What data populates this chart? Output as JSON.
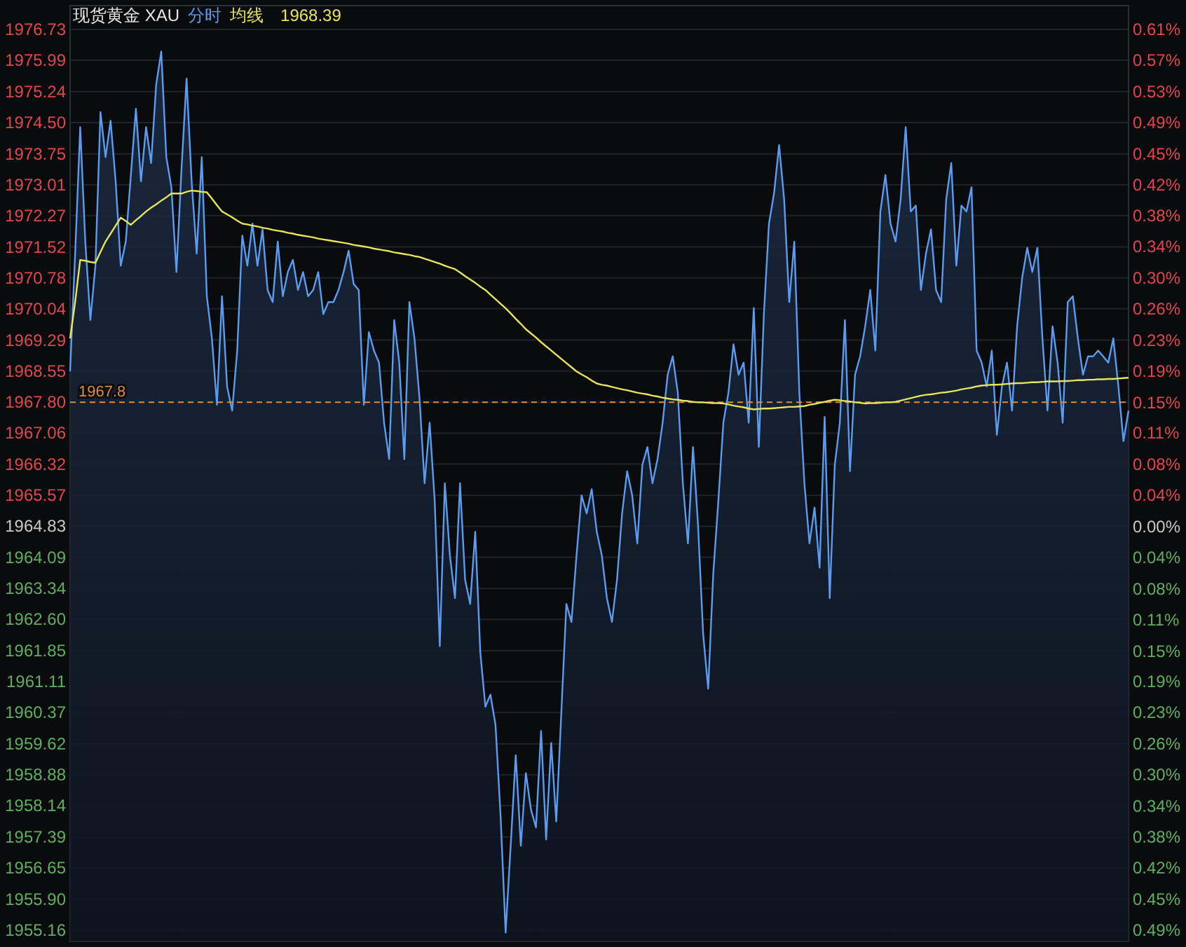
{
  "chart_data": {
    "type": "line",
    "title": "现货黄金 XAU",
    "legend": "top left",
    "grid": "y",
    "tick_labels": "y",
    "annotations": [
      "1968.39"
    ],
    "categories": [
      null,
      null,
      null,
      null,
      null,
      null,
      null,
      null,
      null,
      null,
      null,
      null,
      null,
      null,
      null,
      null,
      null,
      null,
      null,
      null,
      null,
      null,
      null,
      null,
      null,
      null,
      null,
      null,
      null,
      null,
      null,
      null,
      null,
      null,
      null,
      null,
      null,
      null,
      null,
      null,
      null,
      null,
      null,
      null,
      null,
      null,
      null,
      null,
      null,
      null,
      null,
      null,
      null,
      null,
      null,
      null,
      null,
      null,
      null,
      null,
      null,
      null,
      null,
      null,
      null,
      null,
      null,
      null,
      null,
      null,
      null,
      null,
      null,
      null,
      null,
      null,
      null,
      null,
      null,
      null,
      null,
      null,
      null,
      null,
      null,
      null,
      null,
      null,
      null,
      null,
      null,
      null,
      null,
      null,
      null,
      null,
      null,
      null,
      null,
      null,
      null,
      null,
      null,
      null,
      null,
      null,
      null,
      null,
      null,
      null,
      null,
      null,
      null,
      null,
      null,
      null,
      null,
      null,
      null,
      null,
      null,
      null,
      null,
      null,
      null,
      null,
      null,
      null,
      null,
      null,
      null,
      null,
      null,
      null,
      null,
      null,
      null,
      null,
      null,
      null,
      null,
      null,
      null,
      null,
      null,
      null,
      null,
      null,
      null,
      null,
      null,
      null,
      null,
      null,
      null,
      null,
      null,
      null,
      null,
      null,
      null,
      null,
      null,
      null,
      null,
      null,
      null,
      null,
      null,
      null,
      null,
      null,
      null,
      null,
      null,
      null,
      null,
      null,
      null,
      null,
      null,
      null,
      null,
      null,
      null,
      null,
      null,
      null,
      null,
      null,
      null,
      null,
      null,
      null,
      null,
      null,
      null,
      null,
      null,
      null,
      null,
      null,
      null,
      null,
      null,
      null,
      null,
      null,
      null,
      null
    ],
    "series": [
      {
        "name": "分时",
        "type": "area",
        "color": "#5b9cf0",
        "values": [
          1968.54,
          1971.36,
          1974.39,
          1971.65,
          1969.77,
          1971.07,
          1974.75,
          1973.67,
          1974.54,
          1973.09,
          1971.07,
          1971.65,
          1973.24,
          1974.83,
          1973.09,
          1974.39,
          1973.53,
          1975.41,
          1976.2,
          1973.67,
          1972.95,
          1970.92,
          1973.38,
          1975.55,
          1973.09,
          1971.36,
          1973.67,
          1970.34,
          1969.33,
          1967.74,
          1970.34,
          1968.18,
          1967.6,
          1969.04,
          1971.79,
          1971.07,
          1972.08,
          1971.07,
          1971.94,
          1970.49,
          1970.2,
          1971.65,
          1970.34,
          1970.92,
          1971.21,
          1970.49,
          1970.92,
          1970.34,
          1970.49,
          1970.92,
          1969.91,
          1970.2,
          1970.2,
          1970.49,
          1970.92,
          1971.43,
          1970.63,
          1970.49,
          1967.74,
          1969.48,
          1969.04,
          1968.75,
          1967.31,
          1966.44,
          1969.77,
          1968.75,
          1966.44,
          1970.2,
          1969.33,
          1967.89,
          1965.86,
          1967.31,
          1965.43,
          1961.96,
          1965.86,
          1964.13,
          1963.11,
          1965.86,
          1963.55,
          1962.97,
          1964.7,
          1961.81,
          1960.51,
          1960.8,
          1960.08,
          1957.91,
          1955.1,
          1957.18,
          1959.35,
          1957.18,
          1958.92,
          1958.05,
          1957.62,
          1959.93,
          1957.33,
          1959.64,
          1957.76,
          1960.37,
          1962.97,
          1962.54,
          1964.13,
          1965.57,
          1965.14,
          1965.72,
          1964.7,
          1964.13,
          1963.11,
          1962.54,
          1963.55,
          1965.14,
          1966.15,
          1965.57,
          1964.42,
          1966.3,
          1966.73,
          1965.86,
          1966.44,
          1967.31,
          1968.46,
          1968.9,
          1968.03,
          1965.86,
          1964.42,
          1966.73,
          1964.85,
          1962.25,
          1960.94,
          1963.69,
          1965.43,
          1967.31,
          1968.03,
          1969.19,
          1968.46,
          1968.75,
          1967.31,
          1970.06,
          1966.73,
          1969.91,
          1972.08,
          1972.8,
          1973.96,
          1972.66,
          1970.2,
          1971.65,
          1968.03,
          1965.86,
          1964.42,
          1965.28,
          1963.84,
          1967.45,
          1963.11,
          1966.3,
          1967.31,
          1969.77,
          1966.15,
          1968.46,
          1968.9,
          1969.62,
          1970.49,
          1969.04,
          1972.37,
          1973.24,
          1972.08,
          1971.65,
          1972.66,
          1974.39,
          1972.37,
          1972.51,
          1970.49,
          1971.36,
          1971.94,
          1970.49,
          1970.2,
          1972.66,
          1973.53,
          1971.07,
          1972.51,
          1972.37,
          1972.95,
          1969.04,
          1968.75,
          1968.18,
          1969.04,
          1967.02,
          1968.18,
          1968.75,
          1967.6,
          1969.62,
          1970.78,
          1971.5,
          1970.92,
          1971.5,
          1969.33,
          1967.6,
          1969.62,
          1968.75,
          1967.31,
          1970.2,
          1970.34,
          1969.33,
          1968.46,
          1968.9,
          1968.9,
          1969.04,
          1968.9,
          1968.75,
          1969.33,
          1968.18,
          1966.87,
          1967.6
        ]
      },
      {
        "name": "均线",
        "color": "#e6e45c",
        "values": [
          1969.33,
          1970.2,
          1971.21,
          1971.19,
          1971.16,
          1971.14,
          1971.4,
          1971.65,
          1971.84,
          1972.03,
          1972.22,
          1972.14,
          1972.05,
          1972.16,
          1972.26,
          1972.37,
          1972.46,
          1972.54,
          1972.63,
          1972.71,
          1972.8,
          1972.8,
          1972.8,
          1972.84,
          1972.87,
          1972.86,
          1972.84,
          1972.83,
          1972.68,
          1972.52,
          1972.37,
          1972.3,
          1972.23,
          1972.15,
          1972.08,
          1972.06,
          1972.03,
          1972.01,
          1971.98,
          1971.96,
          1971.93,
          1971.91,
          1971.89,
          1971.86,
          1971.84,
          1971.81,
          1971.79,
          1971.77,
          1971.75,
          1971.72,
          1971.7,
          1971.68,
          1971.66,
          1971.64,
          1971.62,
          1971.6,
          1971.57,
          1971.55,
          1971.53,
          1971.51,
          1971.48,
          1971.46,
          1971.44,
          1971.42,
          1971.39,
          1971.37,
          1971.35,
          1971.33,
          1971.3,
          1971.28,
          1971.24,
          1971.2,
          1971.16,
          1971.12,
          1971.07,
          1971.03,
          1970.99,
          1970.91,
          1970.82,
          1970.74,
          1970.66,
          1970.57,
          1970.49,
          1970.38,
          1970.27,
          1970.16,
          1970.05,
          1969.93,
          1969.8,
          1969.68,
          1969.55,
          1969.45,
          1969.35,
          1969.24,
          1969.14,
          1969.04,
          1968.94,
          1968.84,
          1968.74,
          1968.64,
          1968.54,
          1968.47,
          1968.4,
          1968.32,
          1968.25,
          1968.22,
          1968.2,
          1968.17,
          1968.14,
          1968.11,
          1968.09,
          1968.06,
          1968.03,
          1968.01,
          1967.99,
          1967.96,
          1967.94,
          1967.91,
          1967.89,
          1967.87,
          1967.86,
          1967.84,
          1967.83,
          1967.81,
          1967.8,
          1967.8,
          1967.79,
          1967.78,
          1967.78,
          1967.77,
          1967.75,
          1967.72,
          1967.7,
          1967.68,
          1967.65,
          1967.63,
          1967.64,
          1967.65,
          1967.65,
          1967.66,
          1967.67,
          1967.68,
          1967.69,
          1967.69,
          1967.7,
          1967.71,
          1967.74,
          1967.76,
          1967.79,
          1967.81,
          1967.84,
          1967.86,
          1967.85,
          1967.83,
          1967.82,
          1967.8,
          1967.79,
          1967.77,
          1967.78,
          1967.78,
          1967.79,
          1967.8,
          1967.8,
          1967.81,
          1967.84,
          1967.87,
          1967.9,
          1967.93,
          1967.96,
          1967.98,
          1967.99,
          1968.01,
          1968.03,
          1968.04,
          1968.06,
          1968.08,
          1968.11,
          1968.13,
          1968.15,
          1968.18,
          1968.2,
          1968.21,
          1968.22,
          1968.22,
          1968.23,
          1968.24,
          1968.25,
          1968.26,
          1968.26,
          1968.27,
          1968.28,
          1968.28,
          1968.29,
          1968.3,
          1968.3,
          1968.3,
          1968.31,
          1968.31,
          1968.32,
          1968.33,
          1968.33,
          1968.34,
          1968.34,
          1968.35,
          1968.35,
          1968.36,
          1968.36,
          1968.37,
          1968.38,
          1968.39
        ]
      }
    ],
    "ylim": [
      1954.89,
      1977.3
    ],
    "yticks": [
      {
        "value": 1976.73,
        "label": "1976.73"
      },
      {
        "value": 1975.99,
        "label": "1975.99"
      },
      {
        "value": 1975.24,
        "label": "1975.24"
      },
      {
        "value": 1974.5,
        "label": "1974.50"
      },
      {
        "value": 1973.75,
        "label": "1973.75"
      },
      {
        "value": 1973.01,
        "label": "1973.01"
      },
      {
        "value": 1972.27,
        "label": "1972.27"
      },
      {
        "value": 1971.52,
        "label": "1971.52"
      },
      {
        "value": 1970.78,
        "label": "1970.78"
      },
      {
        "value": 1970.04,
        "label": "1970.04"
      },
      {
        "value": 1969.29,
        "label": "1969.29"
      },
      {
        "value": 1968.55,
        "label": "1968.55"
      },
      {
        "value": 1967.8,
        "label": "1967.80"
      },
      {
        "value": 1967.06,
        "label": "1967.06"
      },
      {
        "value": 1966.32,
        "label": "1966.32"
      },
      {
        "value": 1965.57,
        "label": "1965.57"
      },
      {
        "value": 1964.83,
        "label": "1964.83"
      },
      {
        "value": 1964.09,
        "label": "1964.09"
      },
      {
        "value": 1963.34,
        "label": "1963.34"
      },
      {
        "value": 1962.6,
        "label": "1962.60"
      },
      {
        "value": 1961.85,
        "label": "1961.85"
      },
      {
        "value": 1961.11,
        "label": "1961.11"
      },
      {
        "value": 1960.37,
        "label": "1960.37"
      },
      {
        "value": 1959.62,
        "label": "1959.62"
      },
      {
        "value": 1958.88,
        "label": "1958.88"
      },
      {
        "value": 1958.14,
        "label": "1958.14"
      },
      {
        "value": 1957.39,
        "label": "1957.39"
      },
      {
        "value": 1956.65,
        "label": "1956.65"
      },
      {
        "value": 1955.9,
        "label": "1955.90"
      },
      {
        "value": 1955.16,
        "label": "1955.16"
      }
    ],
    "y2lim": [
      -0.506,
      0.635
    ],
    "y2ticks": [
      {
        "value": 0.606,
        "label": "0.61%"
      },
      {
        "value": 0.568,
        "label": "0.57%"
      },
      {
        "value": 0.53,
        "label": "0.53%"
      },
      {
        "value": 0.492,
        "label": "0.49%"
      },
      {
        "value": 0.454,
        "label": "0.45%"
      },
      {
        "value": 0.416,
        "label": "0.42%"
      },
      {
        "value": 0.379,
        "label": "0.38%"
      },
      {
        "value": 0.341,
        "label": "0.34%"
      },
      {
        "value": 0.303,
        "label": "0.30%"
      },
      {
        "value": 0.265,
        "label": "0.26%"
      },
      {
        "value": 0.227,
        "label": "0.23%"
      },
      {
        "value": 0.189,
        "label": "0.19%"
      },
      {
        "value": 0.151,
        "label": "0.15%"
      },
      {
        "value": 0.114,
        "label": "0.11%"
      },
      {
        "value": 0.076,
        "label": "0.08%"
      },
      {
        "value": 0.038,
        "label": "0.04%"
      },
      {
        "value": 0,
        "label": "0.00%"
      },
      {
        "value": -0.038,
        "label": "0.04%"
      },
      {
        "value": -0.076,
        "label": "0.08%"
      },
      {
        "value": -0.114,
        "label": "0.11%"
      },
      {
        "value": -0.152,
        "label": "0.15%"
      },
      {
        "value": -0.189,
        "label": "0.19%"
      },
      {
        "value": -0.227,
        "label": "0.23%"
      },
      {
        "value": -0.265,
        "label": "0.26%"
      },
      {
        "value": -0.303,
        "label": "0.30%"
      },
      {
        "value": -0.341,
        "label": "0.34%"
      },
      {
        "value": -0.379,
        "label": "0.38%"
      },
      {
        "value": -0.416,
        "label": "0.42%"
      },
      {
        "value": -0.455,
        "label": "0.45%"
      },
      {
        "value": -0.492,
        "label": "0.49%"
      }
    ],
    "ref_lines": [
      {
        "axis": "y",
        "value": 1967.8,
        "label": "1967.8",
        "color": "#e08a3c",
        "line_style": "dashed"
      }
    ]
  }
}
